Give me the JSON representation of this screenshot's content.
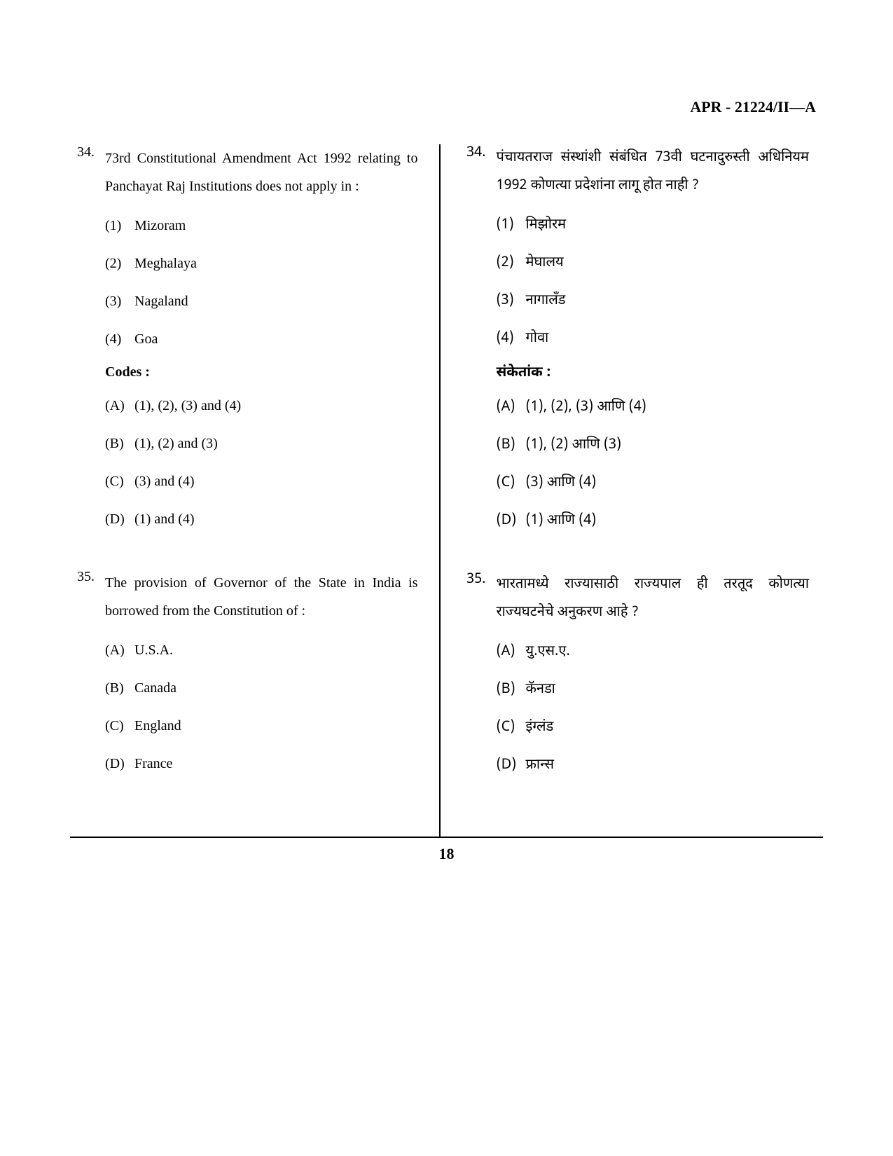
{
  "header": "APR - 21224/II—A",
  "page_number": "18",
  "left_column": {
    "q34": {
      "number": "34.",
      "text": "73rd Constitutional Amendment Act 1992 relating to Panchayat Raj Institutions does not apply in :",
      "options": [
        {
          "num": "(1)",
          "text": "Mizoram"
        },
        {
          "num": "(2)",
          "text": "Meghalaya"
        },
        {
          "num": "(3)",
          "text": "Nagaland"
        },
        {
          "num": "(4)",
          "text": "Goa"
        }
      ],
      "codes_label": "Codes :",
      "codes": [
        {
          "letter": "(A)",
          "text": "(1), (2), (3) and (4)"
        },
        {
          "letter": "(B)",
          "text": "(1), (2) and (3)"
        },
        {
          "letter": "(C)",
          "text": "(3) and (4)"
        },
        {
          "letter": "(D)",
          "text": "(1) and (4)"
        }
      ]
    },
    "q35": {
      "number": "35.",
      "text": "The provision of Governor of the State in India is borrowed from the Constitution of :",
      "codes": [
        {
          "letter": "(A)",
          "text": "U.S.A."
        },
        {
          "letter": "(B)",
          "text": "Canada"
        },
        {
          "letter": "(C)",
          "text": "England"
        },
        {
          "letter": "(D)",
          "text": "France"
        }
      ]
    }
  },
  "right_column": {
    "q34": {
      "number": "34.",
      "text": "पंचायतराज संस्थांशी संबंधित 73वी घटनादुरुस्ती अधिनियम 1992 कोणत्या प्रदेशांना लागू होत नाही ?",
      "options": [
        {
          "num": "(1)",
          "text": "मिझोरम"
        },
        {
          "num": "(2)",
          "text": "मेघालय"
        },
        {
          "num": "(3)",
          "text": "नागालँड"
        },
        {
          "num": "(4)",
          "text": "गोवा"
        }
      ],
      "codes_label": "संकेतांक :",
      "codes": [
        {
          "letter": "(A)",
          "text": "(1), (2), (3) आणि (4)"
        },
        {
          "letter": "(B)",
          "text": "(1), (2) आणि (3)"
        },
        {
          "letter": "(C)",
          "text": "(3) आणि (4)"
        },
        {
          "letter": "(D)",
          "text": "(1) आणि (4)"
        }
      ]
    },
    "q35": {
      "number": "35.",
      "text": "भारतामध्ये राज्यासाठी राज्यपाल ही तरतूद कोणत्या राज्यघटनेचे अनुकरण आहे ?",
      "codes": [
        {
          "letter": "(A)",
          "text": "यु.एस.ए."
        },
        {
          "letter": "(B)",
          "text": "कॅनडा"
        },
        {
          "letter": "(C)",
          "text": "इंग्लंड"
        },
        {
          "letter": "(D)",
          "text": "फ्रान्स"
        }
      ]
    }
  }
}
